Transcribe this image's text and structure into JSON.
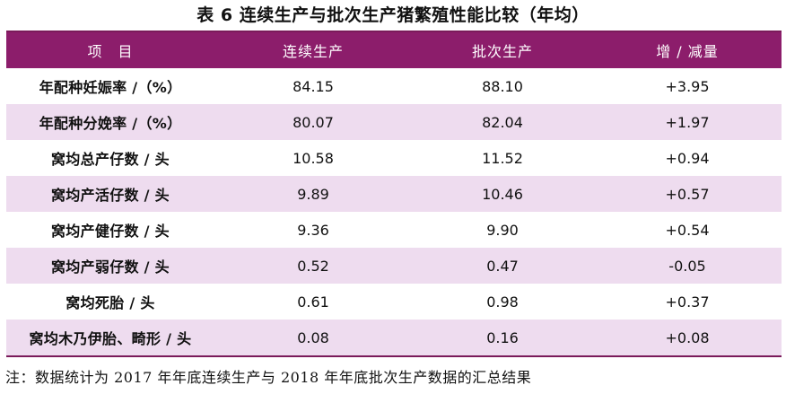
{
  "title": "表 6  连续生产与批次生产猪繁殖性能比较（年均）",
  "table": {
    "headers": [
      "项　目",
      "连续生产",
      "批次生产",
      "增 / 减量"
    ],
    "rows": [
      {
        "item": "年配种妊娠率 /（%）",
        "continuous": "84.15",
        "batch": "88.10",
        "change": "+3.95"
      },
      {
        "item": "年配种分娩率 /（%）",
        "continuous": "80.07",
        "batch": "82.04",
        "change": "+1.97"
      },
      {
        "item": "窝均总产仔数 / 头",
        "continuous": "10.58",
        "batch": "11.52",
        "change": "+0.94"
      },
      {
        "item": "窝均产活仔数 / 头",
        "continuous": "9.89",
        "batch": "10.46",
        "change": "+0.57"
      },
      {
        "item": "窝均产健仔数 / 头",
        "continuous": "9.36",
        "batch": "9.90",
        "change": "+0.54"
      },
      {
        "item": "窝均产弱仔数 / 头",
        "continuous": "0.52",
        "batch": "0.47",
        "change": "-0.05"
      },
      {
        "item": "窝均死胎 / 头",
        "continuous": "0.61",
        "batch": "0.98",
        "change": "+0.37"
      },
      {
        "item": "窝均木乃伊胎、畸形 / 头",
        "continuous": "0.08",
        "batch": "0.16",
        "change": "+0.08"
      }
    ]
  },
  "note": "注：数据统计为 2017 年年底连续生产与 2018 年年底批次生产数据的汇总结果",
  "colors": {
    "header_bg": "#8c1d6b",
    "alt_row_bg": "#eedcef",
    "rule": "#7a1a5a"
  }
}
